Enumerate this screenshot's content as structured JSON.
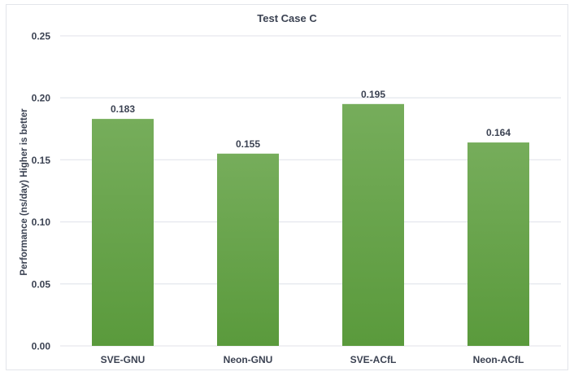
{
  "chart_data": {
    "type": "bar",
    "title": "Test Case C",
    "xlabel": "",
    "ylabel": "Performance (ns/day) Higher is better",
    "categories": [
      "SVE-GNU",
      "Neon-GNU",
      "SVE-ACfL",
      "Neon-ACfL"
    ],
    "values": [
      0.183,
      0.155,
      0.195,
      0.164
    ],
    "data_labels": [
      "0.183",
      "0.155",
      "0.195",
      "0.164"
    ],
    "ylim": [
      0,
      0.25
    ],
    "yticks": [
      "0.00",
      "0.05",
      "0.10",
      "0.15",
      "0.20",
      "0.25"
    ],
    "grid": true,
    "legend": "none",
    "colors": {
      "bar_top": "#76ad5b",
      "bar_bottom": "#5a9a3c",
      "grid": "#e6e8ee",
      "text": "#3b4252"
    }
  }
}
